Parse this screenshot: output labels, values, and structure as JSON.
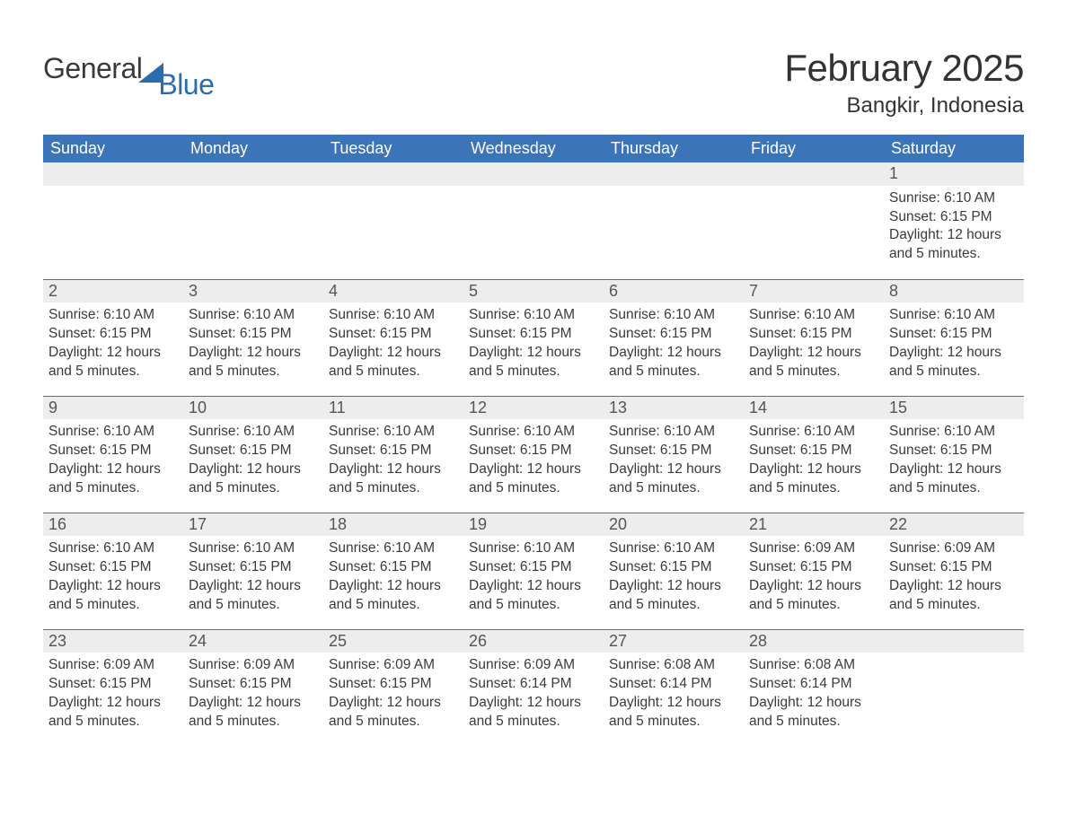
{
  "logo": {
    "text1": "General",
    "text2": "Blue"
  },
  "title": "February 2025",
  "location": "Bangkir, Indonesia",
  "colors": {
    "header_bg": "#3b74b9",
    "header_text": "#ffffff",
    "daynum_bg": "#ededed",
    "border": "#3b74b9",
    "page_bg": "#ffffff",
    "body_text": "#3a3a3a",
    "logo_blue": "#2b6cb0"
  },
  "daysOfWeek": [
    "Sunday",
    "Monday",
    "Tuesday",
    "Wednesday",
    "Thursday",
    "Friday",
    "Saturday"
  ],
  "weeks": [
    [
      {
        "n": "",
        "sunrise": "",
        "sunset": "",
        "daylight": ""
      },
      {
        "n": "",
        "sunrise": "",
        "sunset": "",
        "daylight": ""
      },
      {
        "n": "",
        "sunrise": "",
        "sunset": "",
        "daylight": ""
      },
      {
        "n": "",
        "sunrise": "",
        "sunset": "",
        "daylight": ""
      },
      {
        "n": "",
        "sunrise": "",
        "sunset": "",
        "daylight": ""
      },
      {
        "n": "",
        "sunrise": "",
        "sunset": "",
        "daylight": ""
      },
      {
        "n": "1",
        "sunrise": "Sunrise: 6:10 AM",
        "sunset": "Sunset: 6:15 PM",
        "daylight": "Daylight: 12 hours and 5 minutes."
      }
    ],
    [
      {
        "n": "2",
        "sunrise": "Sunrise: 6:10 AM",
        "sunset": "Sunset: 6:15 PM",
        "daylight": "Daylight: 12 hours and 5 minutes."
      },
      {
        "n": "3",
        "sunrise": "Sunrise: 6:10 AM",
        "sunset": "Sunset: 6:15 PM",
        "daylight": "Daylight: 12 hours and 5 minutes."
      },
      {
        "n": "4",
        "sunrise": "Sunrise: 6:10 AM",
        "sunset": "Sunset: 6:15 PM",
        "daylight": "Daylight: 12 hours and 5 minutes."
      },
      {
        "n": "5",
        "sunrise": "Sunrise: 6:10 AM",
        "sunset": "Sunset: 6:15 PM",
        "daylight": "Daylight: 12 hours and 5 minutes."
      },
      {
        "n": "6",
        "sunrise": "Sunrise: 6:10 AM",
        "sunset": "Sunset: 6:15 PM",
        "daylight": "Daylight: 12 hours and 5 minutes."
      },
      {
        "n": "7",
        "sunrise": "Sunrise: 6:10 AM",
        "sunset": "Sunset: 6:15 PM",
        "daylight": "Daylight: 12 hours and 5 minutes."
      },
      {
        "n": "8",
        "sunrise": "Sunrise: 6:10 AM",
        "sunset": "Sunset: 6:15 PM",
        "daylight": "Daylight: 12 hours and 5 minutes."
      }
    ],
    [
      {
        "n": "9",
        "sunrise": "Sunrise: 6:10 AM",
        "sunset": "Sunset: 6:15 PM",
        "daylight": "Daylight: 12 hours and 5 minutes."
      },
      {
        "n": "10",
        "sunrise": "Sunrise: 6:10 AM",
        "sunset": "Sunset: 6:15 PM",
        "daylight": "Daylight: 12 hours and 5 minutes."
      },
      {
        "n": "11",
        "sunrise": "Sunrise: 6:10 AM",
        "sunset": "Sunset: 6:15 PM",
        "daylight": "Daylight: 12 hours and 5 minutes."
      },
      {
        "n": "12",
        "sunrise": "Sunrise: 6:10 AM",
        "sunset": "Sunset: 6:15 PM",
        "daylight": "Daylight: 12 hours and 5 minutes."
      },
      {
        "n": "13",
        "sunrise": "Sunrise: 6:10 AM",
        "sunset": "Sunset: 6:15 PM",
        "daylight": "Daylight: 12 hours and 5 minutes."
      },
      {
        "n": "14",
        "sunrise": "Sunrise: 6:10 AM",
        "sunset": "Sunset: 6:15 PM",
        "daylight": "Daylight: 12 hours and 5 minutes."
      },
      {
        "n": "15",
        "sunrise": "Sunrise: 6:10 AM",
        "sunset": "Sunset: 6:15 PM",
        "daylight": "Daylight: 12 hours and 5 minutes."
      }
    ],
    [
      {
        "n": "16",
        "sunrise": "Sunrise: 6:10 AM",
        "sunset": "Sunset: 6:15 PM",
        "daylight": "Daylight: 12 hours and 5 minutes."
      },
      {
        "n": "17",
        "sunrise": "Sunrise: 6:10 AM",
        "sunset": "Sunset: 6:15 PM",
        "daylight": "Daylight: 12 hours and 5 minutes."
      },
      {
        "n": "18",
        "sunrise": "Sunrise: 6:10 AM",
        "sunset": "Sunset: 6:15 PM",
        "daylight": "Daylight: 12 hours and 5 minutes."
      },
      {
        "n": "19",
        "sunrise": "Sunrise: 6:10 AM",
        "sunset": "Sunset: 6:15 PM",
        "daylight": "Daylight: 12 hours and 5 minutes."
      },
      {
        "n": "20",
        "sunrise": "Sunrise: 6:10 AM",
        "sunset": "Sunset: 6:15 PM",
        "daylight": "Daylight: 12 hours and 5 minutes."
      },
      {
        "n": "21",
        "sunrise": "Sunrise: 6:09 AM",
        "sunset": "Sunset: 6:15 PM",
        "daylight": "Daylight: 12 hours and 5 minutes."
      },
      {
        "n": "22",
        "sunrise": "Sunrise: 6:09 AM",
        "sunset": "Sunset: 6:15 PM",
        "daylight": "Daylight: 12 hours and 5 minutes."
      }
    ],
    [
      {
        "n": "23",
        "sunrise": "Sunrise: 6:09 AM",
        "sunset": "Sunset: 6:15 PM",
        "daylight": "Daylight: 12 hours and 5 minutes."
      },
      {
        "n": "24",
        "sunrise": "Sunrise: 6:09 AM",
        "sunset": "Sunset: 6:15 PM",
        "daylight": "Daylight: 12 hours and 5 minutes."
      },
      {
        "n": "25",
        "sunrise": "Sunrise: 6:09 AM",
        "sunset": "Sunset: 6:15 PM",
        "daylight": "Daylight: 12 hours and 5 minutes."
      },
      {
        "n": "26",
        "sunrise": "Sunrise: 6:09 AM",
        "sunset": "Sunset: 6:14 PM",
        "daylight": "Daylight: 12 hours and 5 minutes."
      },
      {
        "n": "27",
        "sunrise": "Sunrise: 6:08 AM",
        "sunset": "Sunset: 6:14 PM",
        "daylight": "Daylight: 12 hours and 5 minutes."
      },
      {
        "n": "28",
        "sunrise": "Sunrise: 6:08 AM",
        "sunset": "Sunset: 6:14 PM",
        "daylight": "Daylight: 12 hours and 5 minutes."
      },
      {
        "n": "",
        "sunrise": "",
        "sunset": "",
        "daylight": ""
      }
    ]
  ]
}
